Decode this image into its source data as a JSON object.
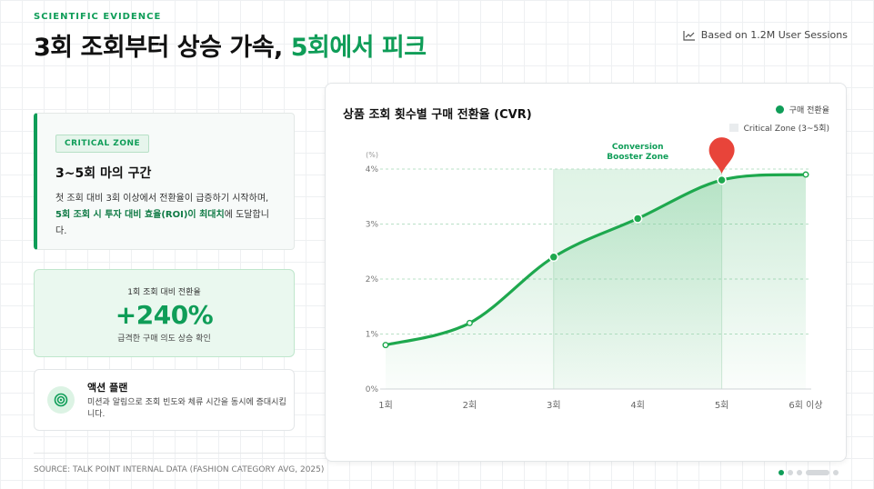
{
  "header": {
    "eyebrow": "SCIENTIFIC EVIDENCE",
    "title_main": "3회 조회부터 상승 가속, ",
    "title_accent": "5회에서 피크",
    "sessions_note": "Based on 1.2M User Sessions"
  },
  "zone_card": {
    "tag": "CRITICAL ZONE",
    "title": "3~5회 마의 구간",
    "desc_1": "첫 조회 대비 3회 이상에서 전환율이 급증하기 시작하며, ",
    "desc_bold": "5회 조회 시 투자 대비 효율(ROI)이 최대치",
    "desc_2": "에 도달합니다."
  },
  "stat_card": {
    "label": "1회 조회 대비 전환율",
    "value": "+240%",
    "sub": "급격한 구매 의도 상승 확인"
  },
  "action_card": {
    "title": "액션 플랜",
    "desc": "미션과 알림으로 조회 빈도와 체류 시간을 동시에 증대시킵니다."
  },
  "source": "SOURCE: TALK POINT INTERNAL DATA (FASHION CATEGORY AVG, 2025)",
  "colors": {
    "accent": "#0f9d58",
    "line": "#1ea84e",
    "pin": "#e8443a"
  },
  "chart_data": {
    "type": "line",
    "title": "상품 조회 횟수별 구매 전환율 (CVR)",
    "ylabel": "(%)",
    "categories": [
      "1회",
      "2회",
      "3회",
      "4회",
      "5회",
      "6회 이상"
    ],
    "yticks": [
      "0%",
      "1%",
      "2%",
      "3%",
      "4%"
    ],
    "ylim": [
      0,
      4
    ],
    "series": [
      {
        "name": "구매 전환율",
        "values": [
          0.8,
          1.2,
          2.4,
          3.1,
          3.8,
          3.9
        ]
      }
    ],
    "critical_zone": {
      "label": "Critical Zone (3~5회)",
      "from": "3회",
      "to": "5회"
    },
    "annotation": {
      "line1": "Conversion",
      "line2": "Booster Zone"
    },
    "peak": "5회",
    "grid": true,
    "legend_position": "top-right"
  }
}
